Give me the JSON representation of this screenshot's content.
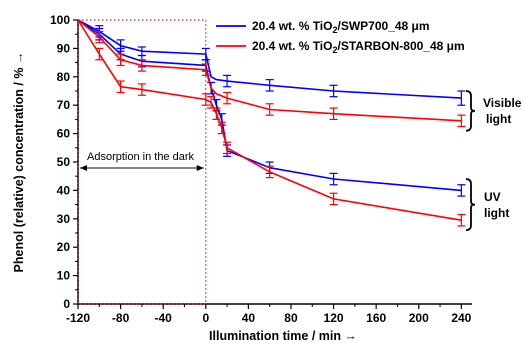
{
  "chart_data": {
    "type": "line",
    "xlabel": "Illumination time / min →",
    "ylabel": "Phenol (relative) concentration / % →",
    "xlim": [
      -120,
      250
    ],
    "ylim": [
      0,
      100
    ],
    "x_ticks": [
      -120,
      -80,
      -40,
      0,
      40,
      80,
      120,
      160,
      200,
      240
    ],
    "y_ticks": [
      0,
      10,
      20,
      30,
      40,
      50,
      60,
      70,
      80,
      90,
      100
    ],
    "legend_position": "top-right",
    "series": [
      {
        "name": "20.4 wt. % TiO2/SWP700_48 μm",
        "name_parts": [
          "20.4 wt. % TiO",
          "2",
          "/SWP700_48 μm"
        ],
        "color": "#0000ff",
        "branches": [
          {
            "x": [
              -120,
              -100,
              -80,
              -60,
              0,
              5,
              10,
              20,
              60,
              120,
              240
            ],
            "y": [
              100,
              96,
              91,
              89,
              88,
              80,
              79,
              78.5,
              77,
              75,
              72.5
            ],
            "err": [
              0,
              2,
              2,
              1.5,
              2,
              0,
              0,
              2,
              2,
              2,
              2.5
            ]
          },
          {
            "x": [
              -120,
              -100,
              -80,
              -60,
              0,
              5,
              10,
              15,
              20,
              60,
              120,
              240
            ],
            "y": [
              100,
              95,
              88,
              85.5,
              84,
              76,
              70,
              65,
              54,
              48,
              44,
              40
            ],
            "err": [
              0,
              2,
              2,
              2,
              2,
              2,
              2,
              2,
              2,
              2,
              2,
              2
            ]
          }
        ]
      },
      {
        "name": "20.4 wt. % TiO2/STARBON-800_48 μm",
        "name_parts": [
          "20.4 wt. % TiO",
          "2",
          "/STARBON-800_48 μm"
        ],
        "color": "#ff0000",
        "branches": [
          {
            "x": [
              -120,
              -100,
              -80,
              -60,
              0,
              5,
              10,
              20,
              60,
              120,
              240
            ],
            "y": [
              100,
              94,
              86,
              84,
              82.5,
              76,
              74,
              72.5,
              68.5,
              67,
              64.5
            ],
            "err": [
              0,
              2,
              2,
              2,
              2,
              0,
              0,
              2,
              2,
              2,
              2
            ]
          },
          {
            "x": [
              -120,
              -100,
              -80,
              -60,
              0,
              5,
              10,
              15,
              20,
              60,
              120,
              240
            ],
            "y": [
              100,
              88,
              76.5,
              75.5,
              72,
              71,
              67,
              62,
              55,
              46.5,
              37,
              29.5
            ],
            "err": [
              0,
              2,
              2,
              2,
              2,
              2,
              2,
              2,
              2,
              2,
              2,
              2
            ]
          }
        ]
      }
    ],
    "annotations": {
      "adsorption": "Adsorption in the dark",
      "visible_label": [
        "Visible",
        "light"
      ],
      "uv_label": [
        "UV",
        "light"
      ]
    }
  }
}
